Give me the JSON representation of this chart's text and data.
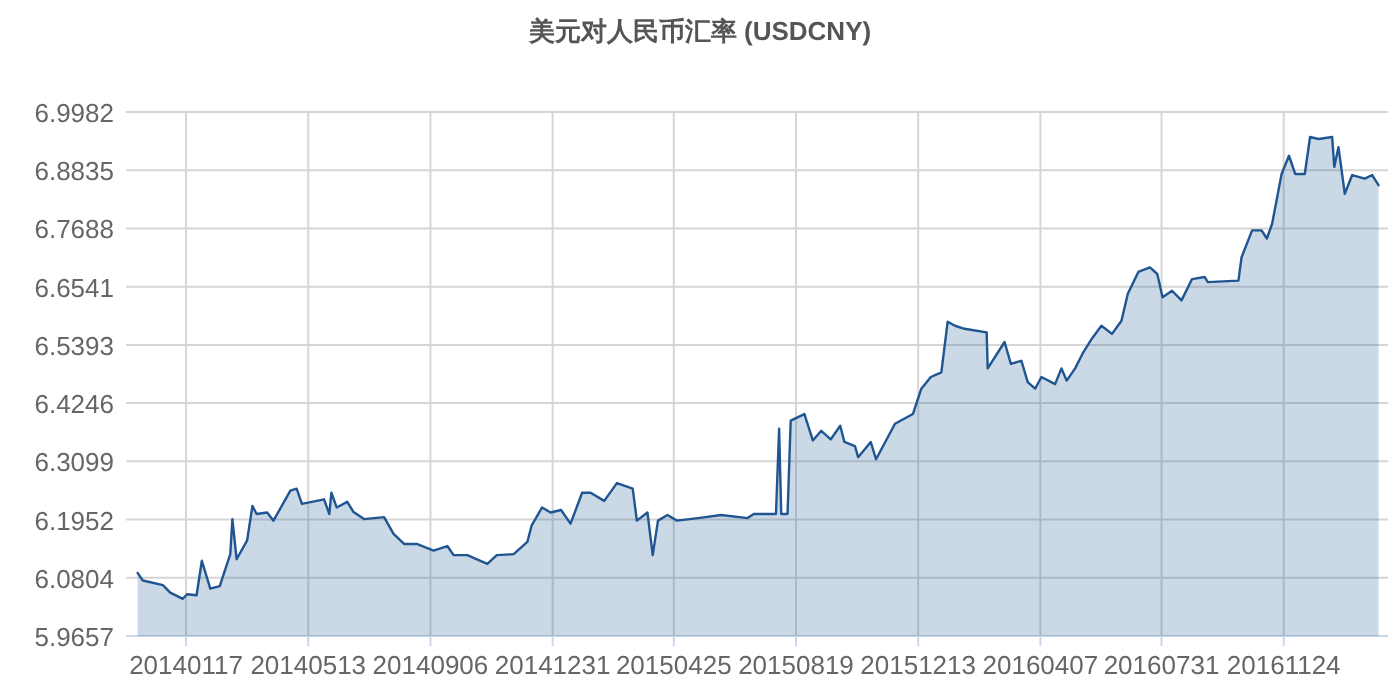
{
  "chart_data": {
    "type": "area",
    "title": "美元对人民币汇率 (USDCNY)",
    "color": "#1f5591",
    "x": [
      "2013-12-02",
      "2013-12-07",
      "2013-12-26",
      "2014-01-02",
      "2014-01-14",
      "2014-01-18",
      "2014-01-27",
      "2014-02-01",
      "2014-02-09",
      "2014-02-18",
      "2014-02-28",
      "2014-03-02",
      "2014-03-06",
      "2014-03-16",
      "2014-03-21",
      "2014-03-25",
      "2014-04-04",
      "2014-04-10",
      "2014-04-26",
      "2014-05-02",
      "2014-05-07",
      "2014-05-28",
      "2014-06-02",
      "2014-06-04",
      "2014-06-09",
      "2014-06-19",
      "2014-06-25",
      "2014-07-05",
      "2014-07-24",
      "2014-08-02",
      "2014-08-12",
      "2014-08-24",
      "2014-09-09",
      "2014-09-22",
      "2014-09-28",
      "2014-10-11",
      "2014-10-30",
      "2014-11-08",
      "2014-11-24",
      "2014-12-07",
      "2014-12-11",
      "2014-12-21",
      "2014-12-29",
      "2015-01-08",
      "2015-01-17",
      "2015-01-28",
      "2015-02-05",
      "2015-02-18",
      "2015-03-02",
      "2015-03-17",
      "2015-03-21",
      "2015-03-31",
      "2015-04-05",
      "2015-04-10",
      "2015-04-19",
      "2015-04-28",
      "2015-05-18",
      "2015-06-09",
      "2015-07-04",
      "2015-07-10",
      "2015-07-31",
      "2015-08-03",
      "2015-08-05",
      "2015-08-11",
      "2015-08-14",
      "2015-08-27",
      "2015-09-04",
      "2015-09-12",
      "2015-09-21",
      "2015-09-30",
      "2015-10-04",
      "2015-10-14",
      "2015-10-17",
      "2015-10-29",
      "2015-11-03",
      "2015-11-21",
      "2015-12-08",
      "2015-12-16",
      "2015-12-25",
      "2016-01-04",
      "2016-01-10",
      "2016-01-17",
      "2016-01-26",
      "2016-02-16",
      "2016-02-17",
      "2016-03-04",
      "2016-03-10",
      "2016-03-20",
      "2016-03-26",
      "2016-04-02",
      "2016-04-08",
      "2016-04-21",
      "2016-04-27",
      "2016-05-02",
      "2016-05-10",
      "2016-05-17",
      "2016-05-26",
      "2016-06-04",
      "2016-06-14",
      "2016-06-23",
      "2016-06-29",
      "2016-07-09",
      "2016-07-20",
      "2016-07-27",
      "2016-08-01",
      "2016-08-10",
      "2016-08-19",
      "2016-08-29",
      "2016-09-10",
      "2016-09-13",
      "2016-10-12",
      "2016-10-15",
      "2016-10-25",
      "2016-11-03",
      "2016-11-08",
      "2016-11-13",
      "2016-11-22",
      "2016-11-29",
      "2016-12-05",
      "2016-12-14",
      "2016-12-19",
      "2016-12-27",
      "2017-01-09",
      "2017-01-11",
      "2017-01-15",
      "2017-01-21",
      "2017-01-28",
      "2017-02-09",
      "2017-02-16",
      "2017-02-22"
    ],
    "values": [
      6.09,
      6.075,
      6.066,
      6.051,
      6.039,
      6.048,
      6.046,
      6.114,
      6.059,
      6.064,
      6.127,
      6.196,
      6.117,
      6.154,
      6.222,
      6.206,
      6.209,
      6.193,
      6.252,
      6.256,
      6.226,
      6.235,
      6.206,
      6.248,
      6.219,
      6.23,
      6.21,
      6.196,
      6.2,
      6.167,
      6.147,
      6.147,
      6.134,
      6.143,
      6.125,
      6.125,
      6.108,
      6.125,
      6.127,
      6.151,
      6.183,
      6.219,
      6.209,
      6.214,
      6.187,
      6.248,
      6.248,
      6.232,
      6.267,
      6.256,
      6.193,
      6.209,
      6.125,
      6.193,
      6.204,
      6.193,
      6.198,
      6.204,
      6.198,
      6.206,
      6.206,
      6.374,
      6.206,
      6.206,
      6.39,
      6.403,
      6.351,
      6.37,
      6.353,
      6.38,
      6.348,
      6.34,
      6.318,
      6.348,
      6.314,
      6.384,
      6.403,
      6.453,
      6.476,
      6.485,
      6.585,
      6.577,
      6.571,
      6.564,
      6.493,
      6.545,
      6.502,
      6.508,
      6.466,
      6.453,
      6.476,
      6.462,
      6.493,
      6.469,
      6.493,
      6.522,
      6.552,
      6.577,
      6.561,
      6.587,
      6.64,
      6.683,
      6.692,
      6.679,
      6.633,
      6.646,
      6.627,
      6.669,
      6.673,
      6.663,
      6.666,
      6.712,
      6.765,
      6.765,
      6.749,
      6.778,
      6.876,
      6.912,
      6.876,
      6.876,
      6.949,
      6.945,
      6.949,
      6.89,
      6.929,
      6.837,
      6.874,
      6.867,
      6.874,
      6.854
    ],
    "xlim": [
      "2013-11-21",
      "2017-03-03"
    ],
    "xticks": [
      {
        "value": "2014-01-17",
        "label": "20140117"
      },
      {
        "value": "2014-05-13",
        "label": "20140513"
      },
      {
        "value": "2014-09-06",
        "label": "20140906"
      },
      {
        "value": "2014-12-31",
        "label": "20141231"
      },
      {
        "value": "2015-04-25",
        "label": "20150425"
      },
      {
        "value": "2015-08-19",
        "label": "20150819"
      },
      {
        "value": "2015-12-13",
        "label": "20151213"
      },
      {
        "value": "2016-04-07",
        "label": "20160407"
      },
      {
        "value": "2016-07-31",
        "label": "20160731"
      },
      {
        "value": "2016-11-24",
        "label": "20161124"
      }
    ],
    "ylim": [
      5.9657,
      6.9982
    ],
    "yticks": [
      5.9657,
      6.0804,
      6.1952,
      6.3099,
      6.4246,
      6.5393,
      6.6541,
      6.7688,
      6.8835,
      6.9982
    ],
    "grid": true
  }
}
